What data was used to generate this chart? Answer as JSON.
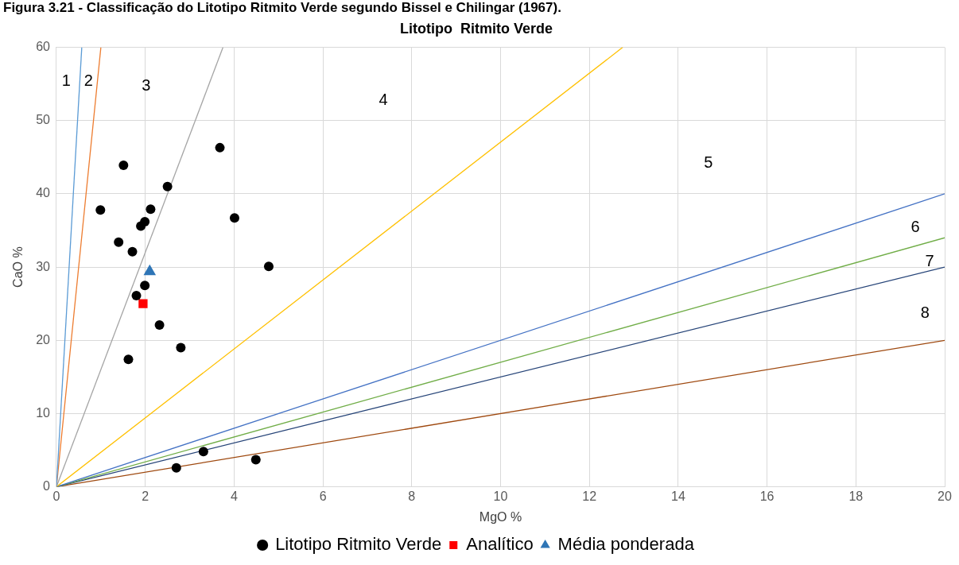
{
  "chart_data": {
    "type": "scatter",
    "title": "Litotipo  Ritmito Verde",
    "xlabel": "MgO %",
    "ylabel": "CaO %",
    "xlim": [
      0,
      20
    ],
    "xticks": [
      0,
      2,
      4,
      6,
      8,
      10,
      12,
      14,
      16,
      18,
      20
    ],
    "ylim": [
      0,
      60
    ],
    "yticks": [
      0,
      10,
      20,
      30,
      40,
      50,
      60
    ],
    "grid": true,
    "legend": "bottom",
    "annotations": [
      "Figura 3.21 - Classificação do Litotipo Ritmito Verde segundo Bissel e Chilingar (1967).",
      "1",
      "2",
      "3",
      "4",
      "5",
      "6",
      "7",
      "8"
    ],
    "series": [
      {
        "type": "line",
        "color": "#5b9bd5",
        "marker": "none",
        "x": [
          0,
          0.57
        ],
        "values": [
          0,
          60
        ]
      },
      {
        "type": "line",
        "color": "#ed7d31",
        "marker": "none",
        "x": [
          0,
          1.0
        ],
        "values": [
          0,
          60
        ]
      },
      {
        "type": "line",
        "color": "#a5a5a5",
        "marker": "none",
        "x": [
          0,
          3.75
        ],
        "values": [
          0,
          60
        ]
      },
      {
        "type": "line",
        "color": "#ffc000",
        "marker": "none",
        "x": [
          0,
          12.75
        ],
        "values": [
          0,
          60
        ]
      },
      {
        "type": "line",
        "color": "#4472c4",
        "marker": "none",
        "x": [
          0,
          20
        ],
        "values": [
          0,
          40
        ]
      },
      {
        "type": "line",
        "color": "#70ad47",
        "marker": "none",
        "x": [
          0,
          20
        ],
        "values": [
          0,
          34
        ]
      },
      {
        "type": "line",
        "color": "#264478",
        "marker": "none",
        "x": [
          0,
          20
        ],
        "values": [
          0,
          30
        ]
      },
      {
        "type": "line",
        "color": "#9e480e",
        "marker": "none",
        "x": [
          0,
          20
        ],
        "values": [
          0,
          20
        ]
      },
      {
        "name": "Litotipo Ritmito Verde",
        "color": "#000000",
        "marker": "circle",
        "x": [
          3.68,
          1.51,
          2.5,
          0.99,
          2.12,
          1.99,
          1.9,
          4.01,
          1.4,
          1.71,
          4.78,
          1.99,
          1.8,
          2.32,
          2.8,
          1.62,
          3.31,
          2.7,
          4.49
        ],
        "values": [
          46.3,
          43.9,
          41.0,
          37.8,
          37.9,
          36.2,
          35.6,
          36.7,
          33.4,
          32.1,
          30.1,
          27.5,
          26.1,
          22.1,
          19.0,
          17.4,
          4.8,
          2.6,
          3.7
        ]
      },
      {
        "name": "Analítico",
        "color": "#ff0000",
        "marker": "square",
        "x": [
          1.95
        ],
        "values": [
          25.0
        ]
      },
      {
        "name": "Média ponderada",
        "color": "#2e75b6",
        "marker": "triangle",
        "x": [
          2.1
        ],
        "values": [
          29.4
        ]
      }
    ]
  }
}
